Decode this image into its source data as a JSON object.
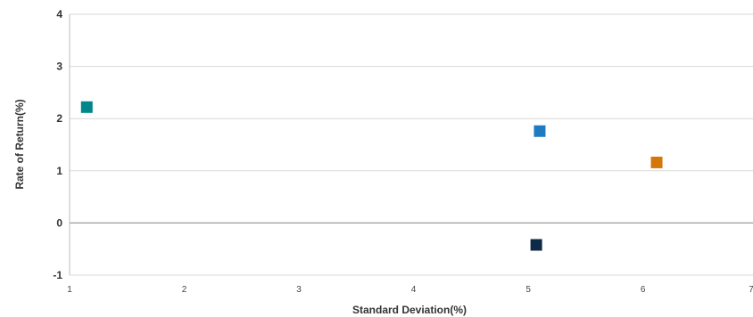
{
  "chart_data": {
    "type": "scatter",
    "title": "",
    "xlabel": "Standard Deviation(%)",
    "ylabel": "Rate of Return(%)",
    "xlim": [
      1,
      7
    ],
    "ylim": [
      -1,
      4
    ],
    "x_ticks": [
      1,
      2,
      3,
      4,
      5,
      6,
      7
    ],
    "y_ticks": [
      -1,
      0,
      1,
      2,
      3,
      4
    ],
    "grid": "horizontal",
    "marker": "square",
    "points": [
      {
        "x": 1.15,
        "y": 2.22,
        "color": "#00868b"
      },
      {
        "x": 5.1,
        "y": 1.76,
        "color": "#1f7bc1"
      },
      {
        "x": 6.12,
        "y": 1.16,
        "color": "#d4760a"
      },
      {
        "x": 5.07,
        "y": -0.42,
        "color": "#0d2a47"
      }
    ]
  }
}
